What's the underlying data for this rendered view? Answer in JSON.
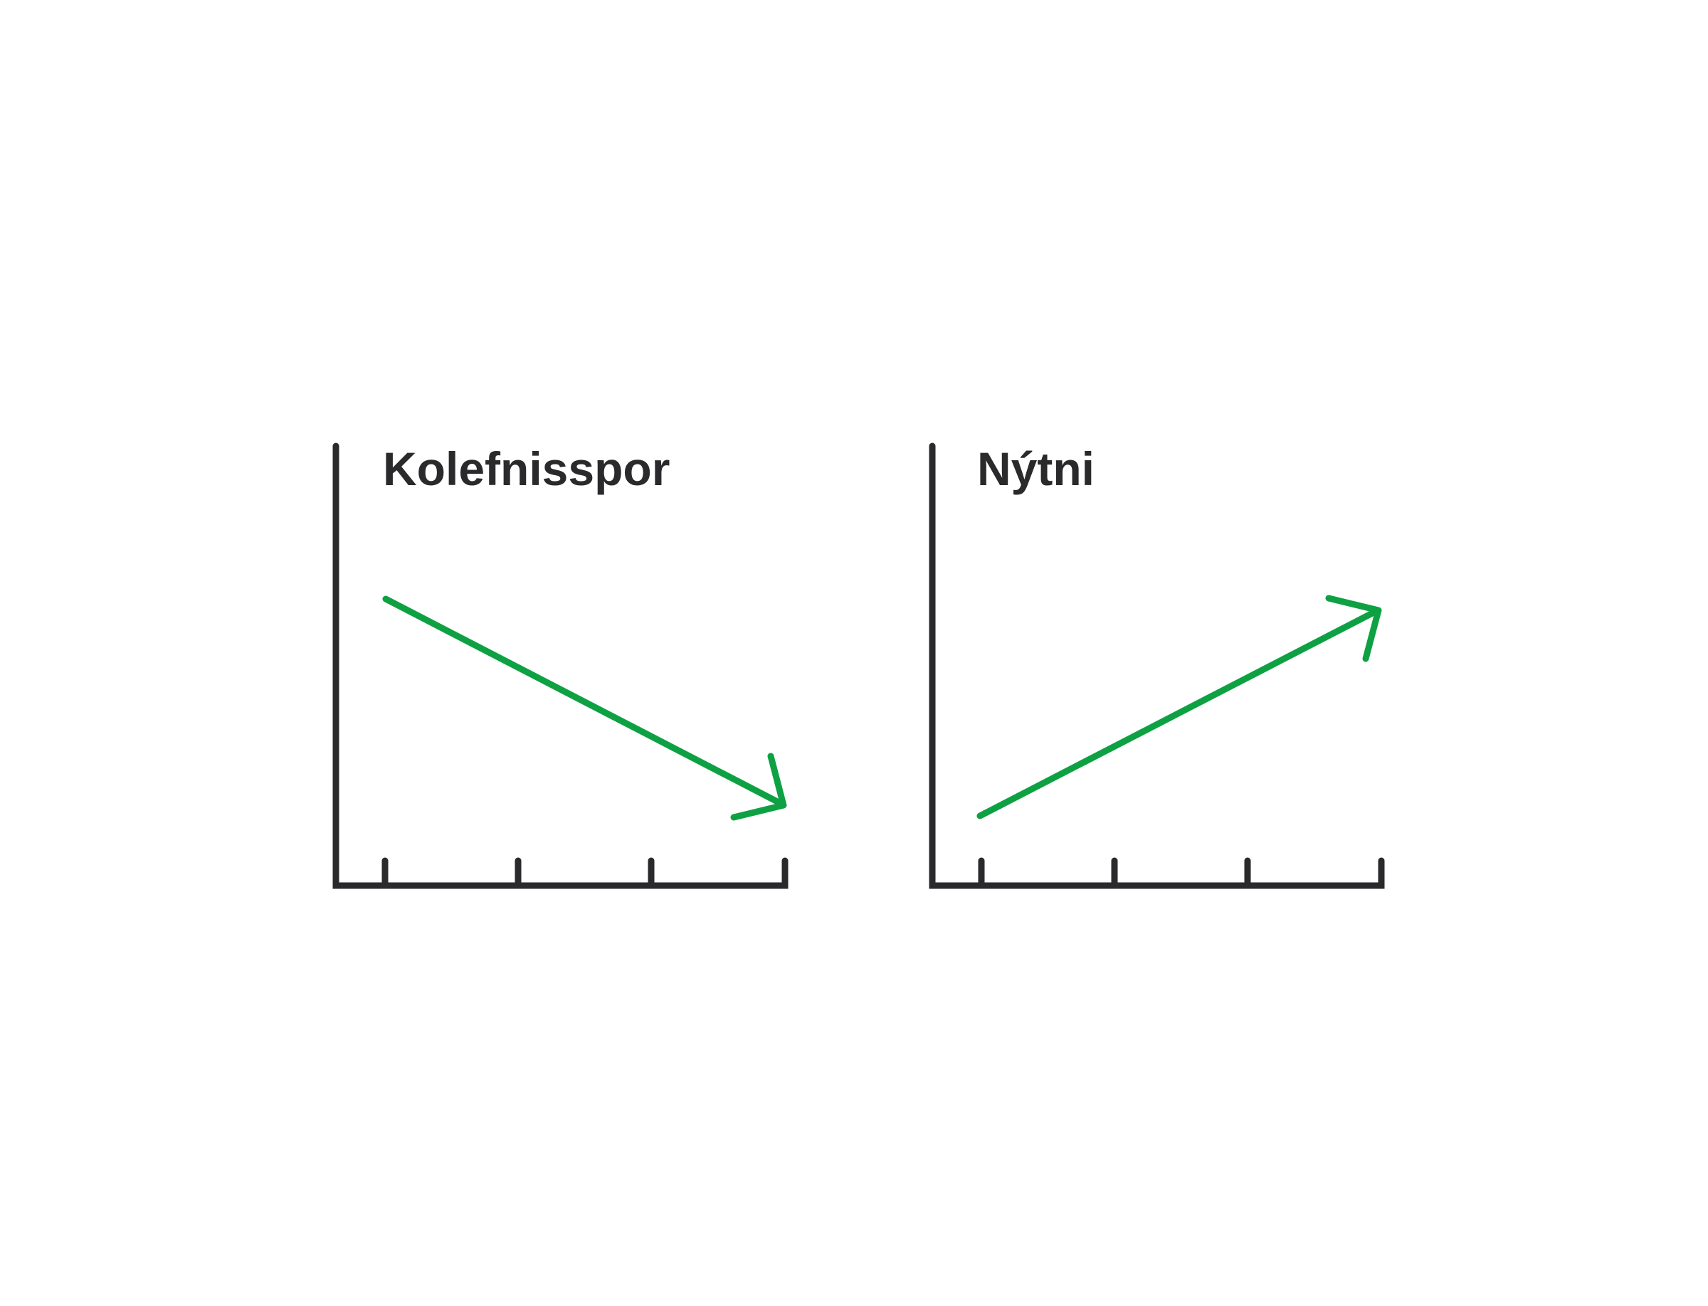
{
  "colors": {
    "axis": "#2a2a2c",
    "trend": "#0ea143",
    "background": "#ffffff"
  },
  "panels": [
    {
      "title": "Kolefnisspor",
      "trend": "decreasing",
      "tick_count": 4,
      "arrow_icon": "arrow-down-right-icon"
    },
    {
      "title": "Nýtni",
      "trend": "increasing",
      "tick_count": 4,
      "arrow_icon": "arrow-up-right-icon"
    }
  ]
}
